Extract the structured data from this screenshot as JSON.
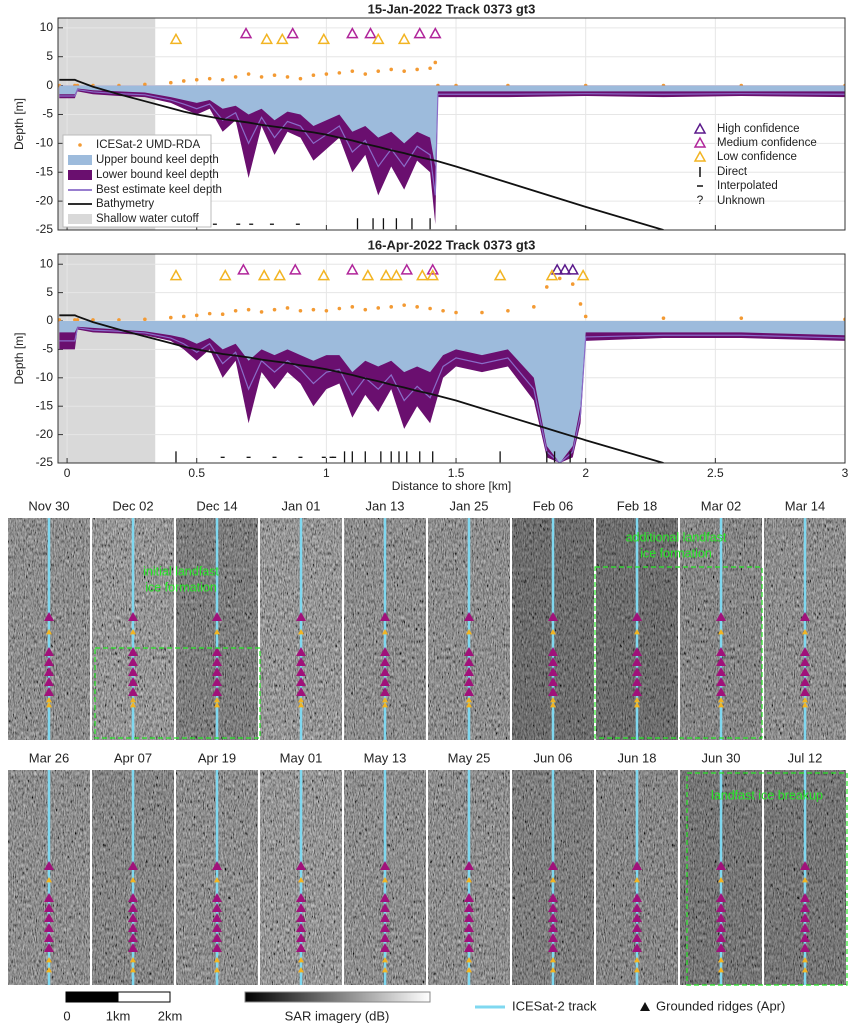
{
  "chart_data": [
    {
      "type": "line",
      "title": "15-Jan-2022 Track 0373 gt3",
      "y_label": "Depth [m]",
      "xlim": [
        -0.035,
        3
      ],
      "ylim": [
        -25,
        11.7
      ],
      "xticks": [
        0,
        0.5,
        1,
        1.5,
        2,
        2.5,
        3
      ],
      "yticks": [
        -25,
        -20,
        -15,
        -10,
        -5,
        0,
        5,
        10
      ],
      "grid": true,
      "xtick_labels": false,
      "x": [
        -0.03,
        0.03,
        0.04,
        0.1,
        0.2,
        0.3,
        0.4,
        0.45,
        0.5,
        0.55,
        0.6,
        0.65,
        0.7,
        0.75,
        0.8,
        0.85,
        0.9,
        0.95,
        1.0,
        1.05,
        1.1,
        1.15,
        1.2,
        1.25,
        1.3,
        1.35,
        1.4,
        1.42,
        1.43,
        1.5,
        1.7,
        2.0,
        2.3,
        2.6,
        3.0
      ],
      "series": [
        {
          "name": "ICESat-2 UMD-RDA",
          "color": "#f39a33",
          "style": "points",
          "values": [
            0,
            0,
            0,
            0,
            0,
            0.2,
            0.5,
            0.8,
            1,
            1.2,
            1,
            1.5,
            2,
            1.5,
            1.8,
            1.5,
            1.2,
            1.8,
            2,
            2.2,
            2.5,
            2,
            2.5,
            2.8,
            2.5,
            2.8,
            3,
            4,
            0,
            0,
            0,
            0,
            0,
            0,
            0
          ]
        },
        {
          "name": "Lower bound keel depth",
          "color": "#6a0f6f",
          "style": "area",
          "values": [
            -2.2,
            -2.2,
            -1,
            -1.5,
            -1.8,
            -2,
            -3,
            -4,
            -5,
            -4,
            -8,
            -6,
            -16,
            -7,
            -12,
            -8,
            -9,
            -13,
            -11,
            -9,
            -15,
            -12,
            -19,
            -14,
            -18,
            -13,
            -15,
            -24,
            -2,
            -2,
            -2,
            -1.8,
            -2,
            -1.8,
            -2
          ]
        },
        {
          "name": "Upper bound keel depth",
          "color": "#9dbbdc",
          "style": "area",
          "values": [
            -1.5,
            -1.5,
            -0.5,
            -0.8,
            -1,
            -1.2,
            -2,
            -2.5,
            -3,
            -2.5,
            -4,
            -3.5,
            -5,
            -4,
            -6,
            -4.5,
            -5,
            -7,
            -6,
            -5,
            -8,
            -7,
            -9,
            -8,
            -10,
            -8,
            -9,
            -14,
            -1,
            -1,
            -1,
            -1,
            -1,
            -1,
            -1
          ]
        },
        {
          "name": "Best estimate keel depth",
          "color": "#8a6cc8",
          "style": "line",
          "values": [
            -1.8,
            -1.8,
            -0.7,
            -1.1,
            -1.4,
            -1.6,
            -2.5,
            -3.2,
            -4,
            -3.2,
            -6,
            -4.7,
            -10,
            -5.5,
            -9,
            -6.2,
            -7,
            -10,
            -8.5,
            -7,
            -11.5,
            -9.5,
            -14,
            -11,
            -14,
            -10.5,
            -12,
            -19,
            -1.5,
            -1.5,
            -1.5,
            -1.4,
            -1.5,
            -1.4,
            -1.5
          ]
        },
        {
          "name": "Bathymetry",
          "color": "#111111",
          "style": "line",
          "values": [
            1,
            1,
            0.8,
            -0.2,
            -1.5,
            -2.7,
            -3.9,
            -4.5,
            -5,
            -5.4,
            -5.8,
            -6.1,
            -6.4,
            -6.8,
            -7.1,
            -7.4,
            -7.8,
            -8.1,
            -8.5,
            -9,
            -9.5,
            -10.1,
            -10.6,
            -11.2,
            -11.7,
            -12.3,
            -12.8,
            -13,
            -13.1,
            -14,
            -16.8,
            -21,
            -25,
            null,
            null
          ]
        }
      ],
      "shade": {
        "name": "Shallow water cutoff",
        "color": "#d9d9d9",
        "x": [
          -0.035,
          0.34
        ]
      },
      "marker_legend": [
        {
          "name": "High confidence",
          "color": "#5b1a8b"
        },
        {
          "name": "Medium confidence",
          "color": "#b0259a"
        },
        {
          "name": "Low confidence",
          "color": "#f2b422"
        },
        {
          "name": "Direct"
        },
        {
          "name": "Interpolated"
        },
        {
          "name": "Unknown",
          "symbol": "?"
        }
      ],
      "ridges": {
        "medium": {
          "x": [
            0.69,
            0.87,
            1.1,
            1.17,
            1.36,
            1.42
          ],
          "y": 9
        },
        "low": {
          "x": [
            0.42,
            0.77,
            0.83,
            0.99,
            1.2,
            1.3
          ],
          "y": 8
        }
      },
      "ticks": {
        "direct": {
          "x": [
            1.12,
            1.18,
            1.22,
            1.27,
            1.33,
            1.4
          ],
          "y": -24
        },
        "interpolated": {
          "x": [
            0.45,
            0.49,
            0.57,
            0.66,
            0.71,
            0.79,
            0.89
          ],
          "y": -24
        }
      }
    },
    {
      "type": "line",
      "title": "16-Apr-2022 Track 0373 gt3",
      "y_label": "Depth [m]",
      "x_label": "Distance to shore [km]",
      "xlim": [
        -0.035,
        3
      ],
      "ylim": [
        -25,
        11.8
      ],
      "xticks": [
        0,
        0.5,
        1,
        1.5,
        2,
        2.5,
        3
      ],
      "yticks": [
        -25,
        -20,
        -15,
        -10,
        -5,
        0,
        5,
        10
      ],
      "grid": true,
      "xtick_labels": true,
      "x": [
        -0.03,
        0.03,
        0.04,
        0.1,
        0.2,
        0.3,
        0.4,
        0.45,
        0.5,
        0.55,
        0.6,
        0.65,
        0.7,
        0.75,
        0.8,
        0.85,
        0.9,
        0.95,
        1.0,
        1.05,
        1.1,
        1.15,
        1.2,
        1.25,
        1.3,
        1.35,
        1.4,
        1.45,
        1.5,
        1.6,
        1.7,
        1.8,
        1.85,
        1.9,
        1.95,
        1.98,
        2.0,
        2.3,
        2.6,
        3.0
      ],
      "series": [
        {
          "color": "#f39a33",
          "style": "points",
          "values": [
            0.2,
            0.2,
            0.2,
            0.2,
            0.2,
            0.3,
            0.6,
            0.8,
            1,
            1.3,
            1.2,
            1.8,
            2,
            1.6,
            2,
            2.3,
            1.8,
            2,
            1.8,
            2.2,
            2.5,
            2,
            2.3,
            2.5,
            2.8,
            2.5,
            2.2,
            1.8,
            1.5,
            1.5,
            1.8,
            2.5,
            6,
            7.5,
            6.5,
            3,
            0.8,
            0.5,
            0.5,
            0.3
          ]
        },
        {
          "color": "#6a0f6f",
          "style": "area",
          "values": [
            -5,
            -5,
            -1.5,
            -2,
            -2.2,
            -2.5,
            -3.5,
            -5,
            -7,
            -5,
            -10,
            -7,
            -18,
            -9,
            -12,
            -9,
            -11,
            -15,
            -12,
            -11,
            -17,
            -13,
            -16,
            -12,
            -19,
            -15,
            -18,
            -10,
            -8,
            -9,
            -8,
            -14,
            -24,
            -25,
            -24,
            -18,
            -3.5,
            -3,
            -3,
            -3.5
          ]
        },
        {
          "color": "#9dbbdc",
          "style": "area",
          "values": [
            -2,
            -2,
            -1,
            -1.2,
            -1.5,
            -1.8,
            -2.5,
            -3,
            -4,
            -3,
            -5,
            -4,
            -7,
            -5,
            -6,
            -5,
            -6,
            -7,
            -6,
            -6,
            -9,
            -7,
            -8,
            -7,
            -9,
            -8,
            -9,
            -6,
            -5,
            -6,
            -5,
            -10,
            -22,
            -25,
            -22,
            -15,
            -2,
            -2,
            -2,
            -2.5
          ]
        },
        {
          "color": "#8a6cc8",
          "style": "line",
          "values": [
            -3.5,
            -3.5,
            -1.2,
            -1.6,
            -1.8,
            -2.1,
            -3,
            -4,
            -5.5,
            -4,
            -7.5,
            -5.5,
            -12,
            -7,
            -9,
            -7,
            -8.5,
            -11,
            -9,
            -8.5,
            -13,
            -10,
            -12,
            -9.5,
            -14,
            -11.5,
            -13.5,
            -8,
            -6.5,
            -7.5,
            -6.5,
            -12,
            -23,
            -25,
            -23,
            -16.5,
            -2.8,
            -2.5,
            -2.5,
            -3
          ]
        },
        {
          "color": "#111111",
          "style": "line",
          "values": [
            1,
            1,
            0.8,
            -0.2,
            -1.5,
            -2.7,
            -3.9,
            -4.5,
            -5,
            -5.4,
            -5.8,
            -6.1,
            -6.4,
            -6.8,
            -7.1,
            -7.4,
            -7.8,
            -8.1,
            -8.5,
            -9,
            -9.5,
            -10.1,
            -10.6,
            -11.2,
            -11.7,
            -12.3,
            -12.8,
            -13.4,
            -14,
            -15.4,
            -16.8,
            -18.2,
            -18.9,
            -19.6,
            -20.3,
            -20.7,
            -21,
            -25,
            null,
            null
          ]
        }
      ],
      "shade": {
        "color": "#d9d9d9",
        "x": [
          -0.035,
          0.34
        ]
      },
      "ridges": {
        "high": {
          "x": [
            1.89,
            1.92,
            1.95
          ],
          "y": 9
        },
        "medium": {
          "x": [
            0.68,
            0.88,
            1.1,
            1.31,
            1.41
          ],
          "y": 9
        },
        "low": {
          "x": [
            0.42,
            0.61,
            0.76,
            0.82,
            0.99,
            1.16,
            1.23,
            1.27,
            1.37,
            1.41,
            1.67,
            1.87,
            1.99
          ],
          "y": 8
        }
      },
      "ticks": {
        "direct": {
          "x": [
            0.42,
            1.07,
            1.1,
            1.15,
            1.21,
            1.25,
            1.28,
            1.31,
            1.36,
            1.41,
            1.67,
            1.85,
            1.88,
            1.94
          ],
          "y": -24
        },
        "interpolated": {
          "x": [
            0.6,
            0.7,
            0.8,
            0.9,
            0.99,
            1.02,
            1.03
          ],
          "y": -24
        }
      }
    }
  ],
  "sar": {
    "rows": [
      [
        "Nov 30",
        "Dec 02",
        "Dec 14",
        "Jan 01",
        "Jan 13",
        "Jan 25",
        "Feb 06",
        "Feb 18",
        "Mar 02",
        "Mar 14"
      ],
      [
        "Mar 26",
        "Apr 07",
        "Apr 19",
        "May 01",
        "May 13",
        "May 25",
        "Jun 06",
        "Jun 18",
        "Jun 30",
        "Jul 12"
      ]
    ],
    "annotations": [
      {
        "lines": [
          "initial landfast",
          "ice formation"
        ]
      },
      {
        "lines": [
          "additional landfast",
          "ice formation"
        ]
      },
      {
        "lines": [
          "landfast ice breakup"
        ]
      }
    ],
    "scalebar_labels": [
      "0",
      "1km",
      "2km"
    ],
    "colorbar_label": "SAR imagery (dB)",
    "track_label": "ICESat-2 track",
    "ridge_label": "Grounded ridges (Apr)"
  }
}
